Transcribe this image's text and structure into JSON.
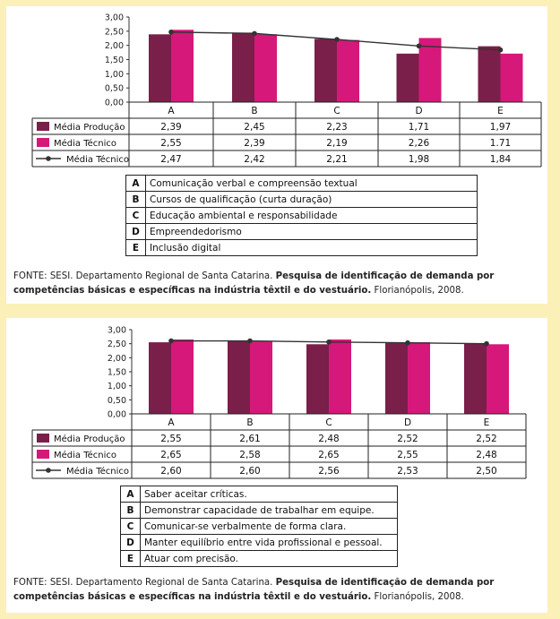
{
  "colors": {
    "producao": "#7a1f4a",
    "tecnico": "#d6187a",
    "line": "#333333",
    "background": "#fbf0b8"
  },
  "chart_data": [
    {
      "type": "bar",
      "categories": [
        "A",
        "B",
        "C",
        "D",
        "E"
      ],
      "yticks": [
        "3,00",
        "2,50",
        "2,00",
        "1,50",
        "1,00",
        "0,50",
        "0,00"
      ],
      "ylim": [
        0,
        3
      ],
      "series": [
        {
          "name": "Média Produção",
          "values": [
            2.39,
            2.45,
            2.23,
            1.71,
            1.97
          ],
          "labels": [
            "2,39",
            "2,45",
            "2,23",
            "1,71",
            "1,97"
          ]
        },
        {
          "name": "Média Técnico",
          "values": [
            2.55,
            2.39,
            2.19,
            2.26,
            1.71
          ],
          "labels": [
            "2,55",
            "2,39",
            "2,19",
            "2,26",
            "1.71"
          ]
        },
        {
          "name": "Média Técnico",
          "type": "line",
          "values": [
            2.47,
            2.42,
            2.21,
            1.98,
            1.84
          ],
          "labels": [
            "2,47",
            "2,42",
            "2,21",
            "1,98",
            "1,84"
          ]
        }
      ],
      "category_header_labels": [
        "A",
        "B",
        "C",
        "D",
        "E"
      ],
      "legend": [
        {
          "code": "A",
          "text": "Comunicação verbal e compreensão textual"
        },
        {
          "code": "B",
          "text": "Cursos de qualificação (curta duração)"
        },
        {
          "code": "C",
          "text": "Educação ambiental e responsabilidade"
        },
        {
          "code": "D",
          "text": "Empreendedorismo"
        },
        {
          "code": "E",
          "text": "Inclusão digital"
        }
      ],
      "source": {
        "prefix": "FONTE: SESI. Departamento Regional de Santa Catarina.",
        "bold": "Pesquisa de identificação de demanda por competências básicas e específicas na indústria têxtil e do vestuário.",
        "suffix": "Florianópolis, 2008."
      }
    },
    {
      "type": "bar",
      "categories": [
        "A",
        "B",
        "C",
        "D",
        "E"
      ],
      "yticks": [
        "3,00",
        "2,50",
        "2,00",
        "1,50",
        "1,00",
        "0,50",
        "0,00"
      ],
      "ylim": [
        0,
        3
      ],
      "series": [
        {
          "name": "Média Produção",
          "values": [
            2.55,
            2.61,
            2.48,
            2.52,
            2.52
          ],
          "labels": [
            "2,55",
            "2,61",
            "2,48",
            "2,52",
            "2,52"
          ]
        },
        {
          "name": "Média Técnico",
          "values": [
            2.65,
            2.58,
            2.65,
            2.55,
            2.48
          ],
          "labels": [
            "2,65",
            "2,58",
            "2,65",
            "2,55",
            "2,48"
          ]
        },
        {
          "name": "Média Técnico",
          "type": "line",
          "values": [
            2.6,
            2.6,
            2.56,
            2.53,
            2.5
          ],
          "labels": [
            "2,60",
            "2,60",
            "2,56",
            "2,53",
            "2,50"
          ]
        }
      ],
      "category_header_labels": [
        "A",
        "B",
        "C",
        "D",
        "E"
      ],
      "legend": [
        {
          "code": "A",
          "text": "Saber aceitar críticas."
        },
        {
          "code": "B",
          "text": "Demonstrar capacidade de trabalhar em equipe."
        },
        {
          "code": "C",
          "text": "Comunicar-se verbalmente de forma clara."
        },
        {
          "code": "D",
          "text": "Manter equilíbrio entre vida profissional e pessoal."
        },
        {
          "code": "E",
          "text": "Atuar com precisão."
        }
      ],
      "source": {
        "prefix": "FONTE: SESI. Departamento Regional de Santa Catarina.",
        "bold": "Pesquisa de identificação de demanda por competências básicas e específicas na indústria têxtil e do vestuário.",
        "suffix": "Florianópolis, 2008."
      }
    }
  ]
}
